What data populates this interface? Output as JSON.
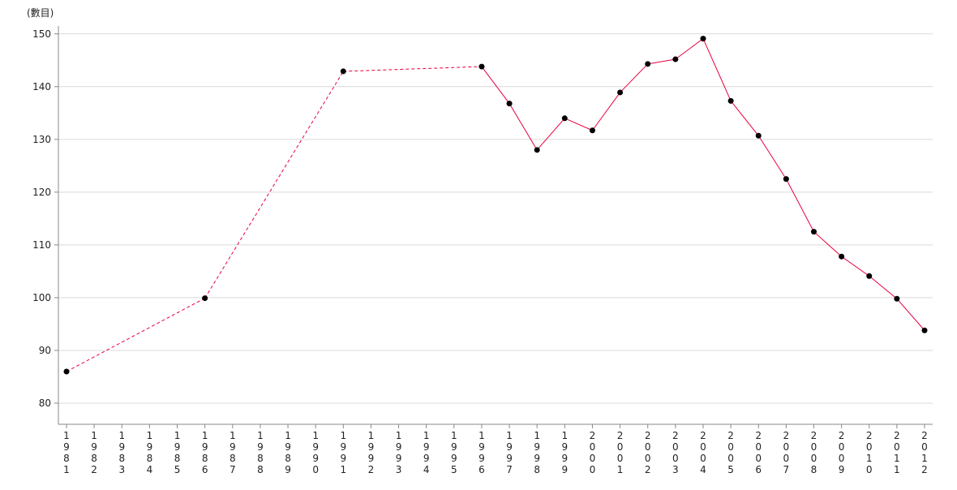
{
  "chart_data": {
    "type": "line",
    "title": "",
    "ylabel": "(數目)",
    "xlabel": "",
    "ylim": [
      76,
      151.5
    ],
    "yticks": [
      80,
      90,
      100,
      110,
      120,
      130,
      140,
      150
    ],
    "grid": true,
    "x": [
      "1981",
      "1982",
      "1983",
      "1984",
      "1985",
      "1986",
      "1987",
      "1988",
      "1989",
      "1990",
      "1991",
      "1992",
      "1993",
      "1994",
      "1995",
      "1996",
      "1997",
      "1998",
      "1999",
      "2000",
      "2001",
      "2002",
      "2003",
      "2004",
      "2005",
      "2006",
      "2007",
      "2008",
      "2009",
      "2010",
      "2011",
      "2012"
    ],
    "values": [
      86.0,
      null,
      null,
      null,
      null,
      99.9,
      null,
      null,
      null,
      null,
      142.9,
      null,
      null,
      null,
      null,
      143.8,
      136.8,
      128.0,
      134.0,
      131.7,
      138.9,
      144.3,
      145.2,
      149.1,
      137.3,
      130.7,
      122.5,
      112.5,
      107.8,
      104.1,
      99.8,
      93.8
    ],
    "gaps_drawn_dashed": true,
    "colors": {
      "line": "#e8003d",
      "marker": "#000000",
      "grid": "#d9d9d9",
      "axis": "#888888"
    }
  }
}
